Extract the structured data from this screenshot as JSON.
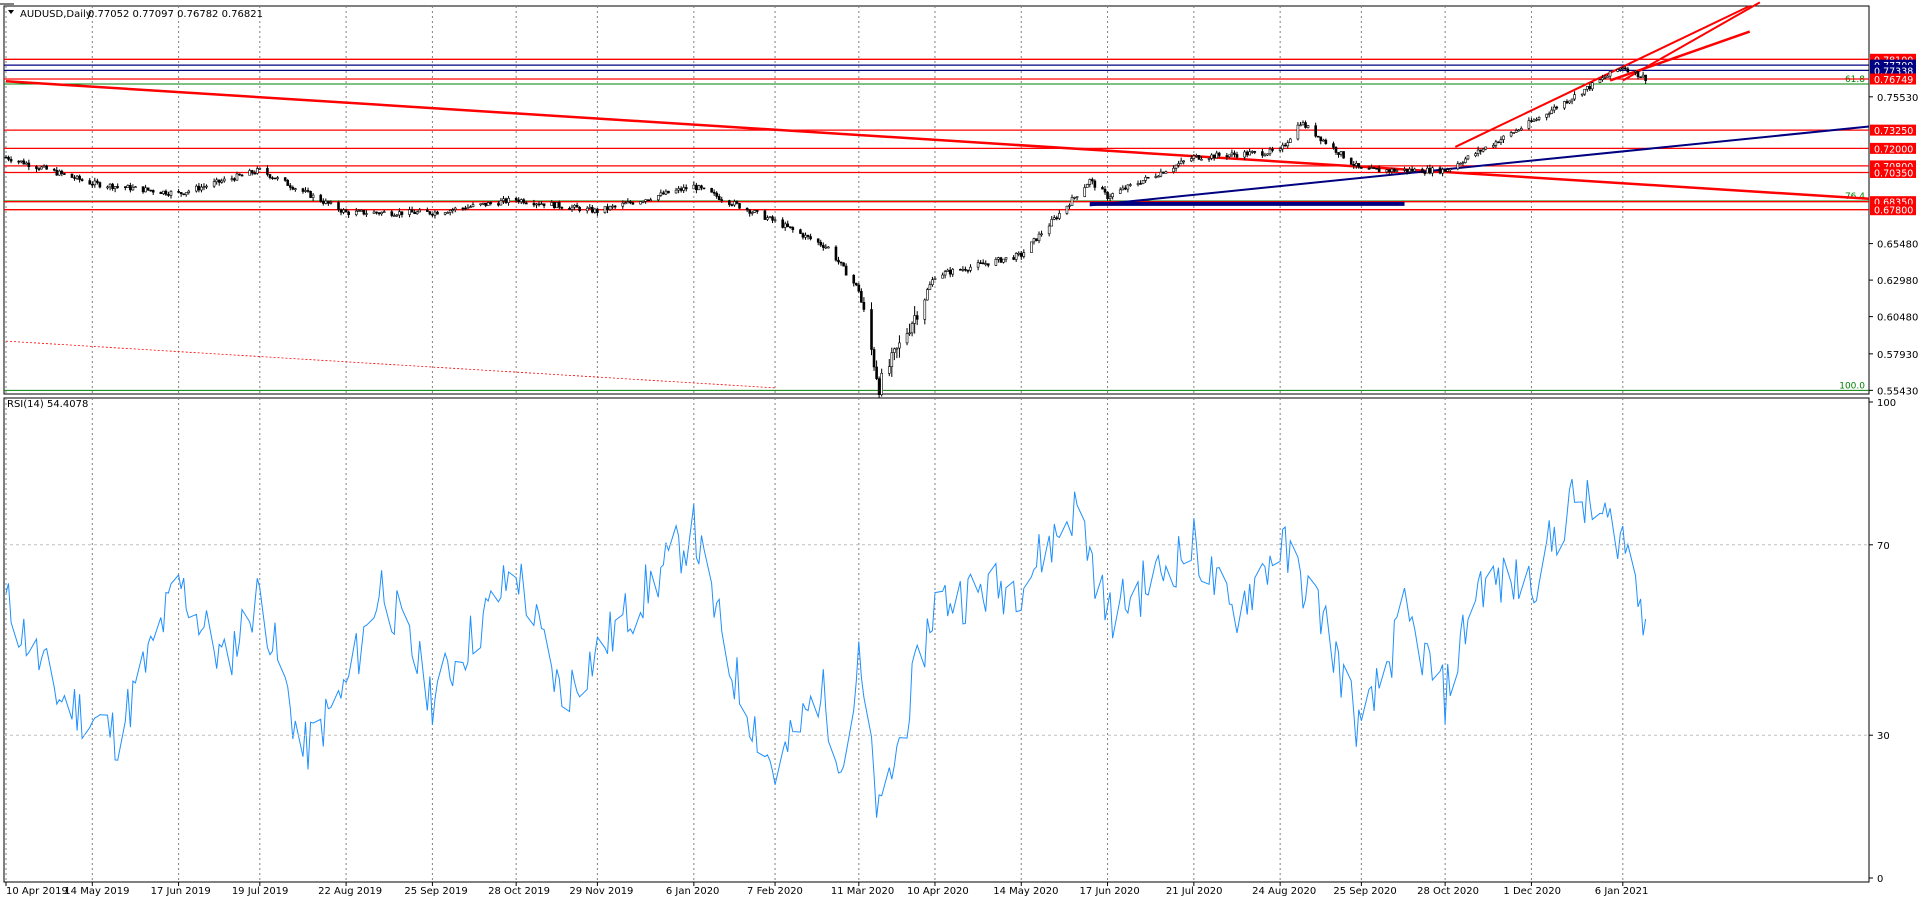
{
  "header": {
    "symbol": "AUDUSD,Daily",
    "ohlc": "0.77052 0.77097 0.76782 0.76821"
  },
  "rsi_header": {
    "label": "RSI(14) 54.4078"
  },
  "colors": {
    "candle": "#000000",
    "level_red": "#ff0000",
    "level_blue": "#000080",
    "fib_green": "#008000",
    "rsi_line": "#1e90ff",
    "grid": "#808080",
    "badge_text": "#ffffff"
  },
  "chart_data": [
    {
      "type": "candlestick",
      "title": "AUDUSD,Daily",
      "ylim": [
        0.5518,
        0.8175
      ],
      "y_ticks": [
        "0.75530",
        "0.65480",
        "0.62980",
        "0.60480",
        "0.57930",
        "0.55430"
      ],
      "x_labels": [
        "10 Apr 2019",
        "14 May 2019",
        "17 Jun 2019",
        "19 Jul 2019",
        "22 Aug 2019",
        "25 Sep 2019",
        "28 Oct 2019",
        "29 Nov 2019",
        "6 Jan 2020",
        "7 Feb 2020",
        "11 Mar 2020",
        "10 Apr 2020",
        "14 May 2020",
        "17 Jun 2020",
        "21 Jul 2020",
        "24 Aug 2020",
        "25 Sep 2020",
        "28 Oct 2020",
        "1 Dec 2020",
        "6 Jan 2021"
      ],
      "grid": "vertical dotted",
      "close_path": [
        {
          "date": "10 Apr 2019",
          "value": 0.714
        },
        {
          "date": "14 May 2019",
          "value": 0.696
        },
        {
          "date": "17 Jun 2019",
          "value": 0.689
        },
        {
          "date": "19 Jul 2019",
          "value": 0.705
        },
        {
          "date": "22 Aug 2019",
          "value": 0.676
        },
        {
          "date": "25 Sep 2019",
          "value": 0.676
        },
        {
          "date": "28 Oct 2019",
          "value": 0.685
        },
        {
          "date": "29 Nov 2019",
          "value": 0.677
        },
        {
          "date": "6 Jan 2020",
          "value": 0.694
        },
        {
          "date": "7 Feb 2020",
          "value": 0.67
        },
        {
          "date": "28 Feb 2020",
          "value": 0.652
        },
        {
          "date": "11 Mar 2020",
          "value": 0.623
        },
        {
          "date": "19 Mar 2020",
          "value": 0.557
        },
        {
          "date": "10 Apr 2020",
          "value": 0.633
        },
        {
          "date": "14 May 2020",
          "value": 0.647
        },
        {
          "date": "10 Jun 2020",
          "value": 0.698
        },
        {
          "date": "17 Jun 2020",
          "value": 0.687
        },
        {
          "date": "21 Jul 2020",
          "value": 0.714
        },
        {
          "date": "24 Aug 2020",
          "value": 0.718
        },
        {
          "date": "1 Sep 2020",
          "value": 0.738
        },
        {
          "date": "25 Sep 2020",
          "value": 0.705
        },
        {
          "date": "28 Oct 2020",
          "value": 0.705
        },
        {
          "date": "1 Dec 2020",
          "value": 0.738
        },
        {
          "date": "6 Jan 2021",
          "value": 0.776
        },
        {
          "date": "15 Jan 2021",
          "value": 0.7682
        }
      ],
      "levels": [
        {
          "price": 0.781,
          "label": "0.78100",
          "color": "#ff0000"
        },
        {
          "price": 0.777,
          "label": "0.77700",
          "color": "#000080"
        },
        {
          "price": 0.7734,
          "label": "0.77338",
          "color": "#000080"
        },
        {
          "price": 0.7675,
          "label": "0.76749",
          "color": "#ff0000"
        },
        {
          "price": 0.7325,
          "label": "0.73250",
          "color": "#ff0000"
        },
        {
          "price": 0.72,
          "label": "0.72000",
          "color": "#ff0000"
        },
        {
          "price": 0.708,
          "label": "0.70800",
          "color": "#ff0000"
        },
        {
          "price": 0.7035,
          "label": "0.70350",
          "color": "#ff0000"
        },
        {
          "price": 0.6835,
          "label": "0.68350",
          "color": "#ff0000"
        },
        {
          "price": 0.678,
          "label": "0.67800",
          "color": "#ff0000"
        }
      ],
      "fib_levels": [
        {
          "price": 0.7641,
          "label": "61.8",
          "color": "#008000"
        },
        {
          "price": 0.684,
          "label": "76.4",
          "color": "#008000"
        },
        {
          "price": 0.5543,
          "label": "100.0",
          "color": "#008000"
        }
      ]
    },
    {
      "type": "line",
      "title": "RSI(14) 54.4078",
      "ylim": [
        0,
        100
      ],
      "y_ticks": [
        "100",
        "70",
        "30",
        "0"
      ],
      "levels": [
        70,
        30
      ],
      "path": [
        {
          "date": "10 Apr 2019",
          "value": 58
        },
        {
          "date": "1 May 2019",
          "value": 38
        },
        {
          "date": "24 May 2019",
          "value": 30
        },
        {
          "date": "17 Jun 2019",
          "value": 62
        },
        {
          "date": "5 Jul 2019",
          "value": 45
        },
        {
          "date": "19 Jul 2019",
          "value": 60
        },
        {
          "date": "5 Aug 2019",
          "value": 26
        },
        {
          "date": "22 Aug 2019",
          "value": 40
        },
        {
          "date": "5 Sep 2019",
          "value": 62
        },
        {
          "date": "25 Sep 2019",
          "value": 38
        },
        {
          "date": "28 Oct 2019",
          "value": 65
        },
        {
          "date": "15 Nov 2019",
          "value": 38
        },
        {
          "date": "6 Jan 2020",
          "value": 73
        },
        {
          "date": "20 Jan 2020",
          "value": 45
        },
        {
          "date": "7 Feb 2020",
          "value": 22
        },
        {
          "date": "25 Feb 2020",
          "value": 40
        },
        {
          "date": "5 Mar 2020",
          "value": 24
        },
        {
          "date": "11 Mar 2020",
          "value": 45
        },
        {
          "date": "19 Mar 2020",
          "value": 12
        },
        {
          "date": "10 Apr 2020",
          "value": 58
        },
        {
          "date": "14 May 2020",
          "value": 62
        },
        {
          "date": "5 Jun 2020",
          "value": 78
        },
        {
          "date": "17 Jun 2020",
          "value": 55
        },
        {
          "date": "21 Jul 2020",
          "value": 70
        },
        {
          "date": "5 Aug 2020",
          "value": 55
        },
        {
          "date": "24 Aug 2020",
          "value": 70
        },
        {
          "date": "10 Sep 2020",
          "value": 55
        },
        {
          "date": "25 Sep 2020",
          "value": 30
        },
        {
          "date": "12 Oct 2020",
          "value": 55
        },
        {
          "date": "28 Oct 2020",
          "value": 38
        },
        {
          "date": "10 Nov 2020",
          "value": 62
        },
        {
          "date": "1 Dec 2020",
          "value": 62
        },
        {
          "date": "18 Dec 2020",
          "value": 80
        },
        {
          "date": "6 Jan 2021",
          "value": 72
        },
        {
          "date": "15 Jan 2021",
          "value": 54.41
        }
      ]
    }
  ]
}
